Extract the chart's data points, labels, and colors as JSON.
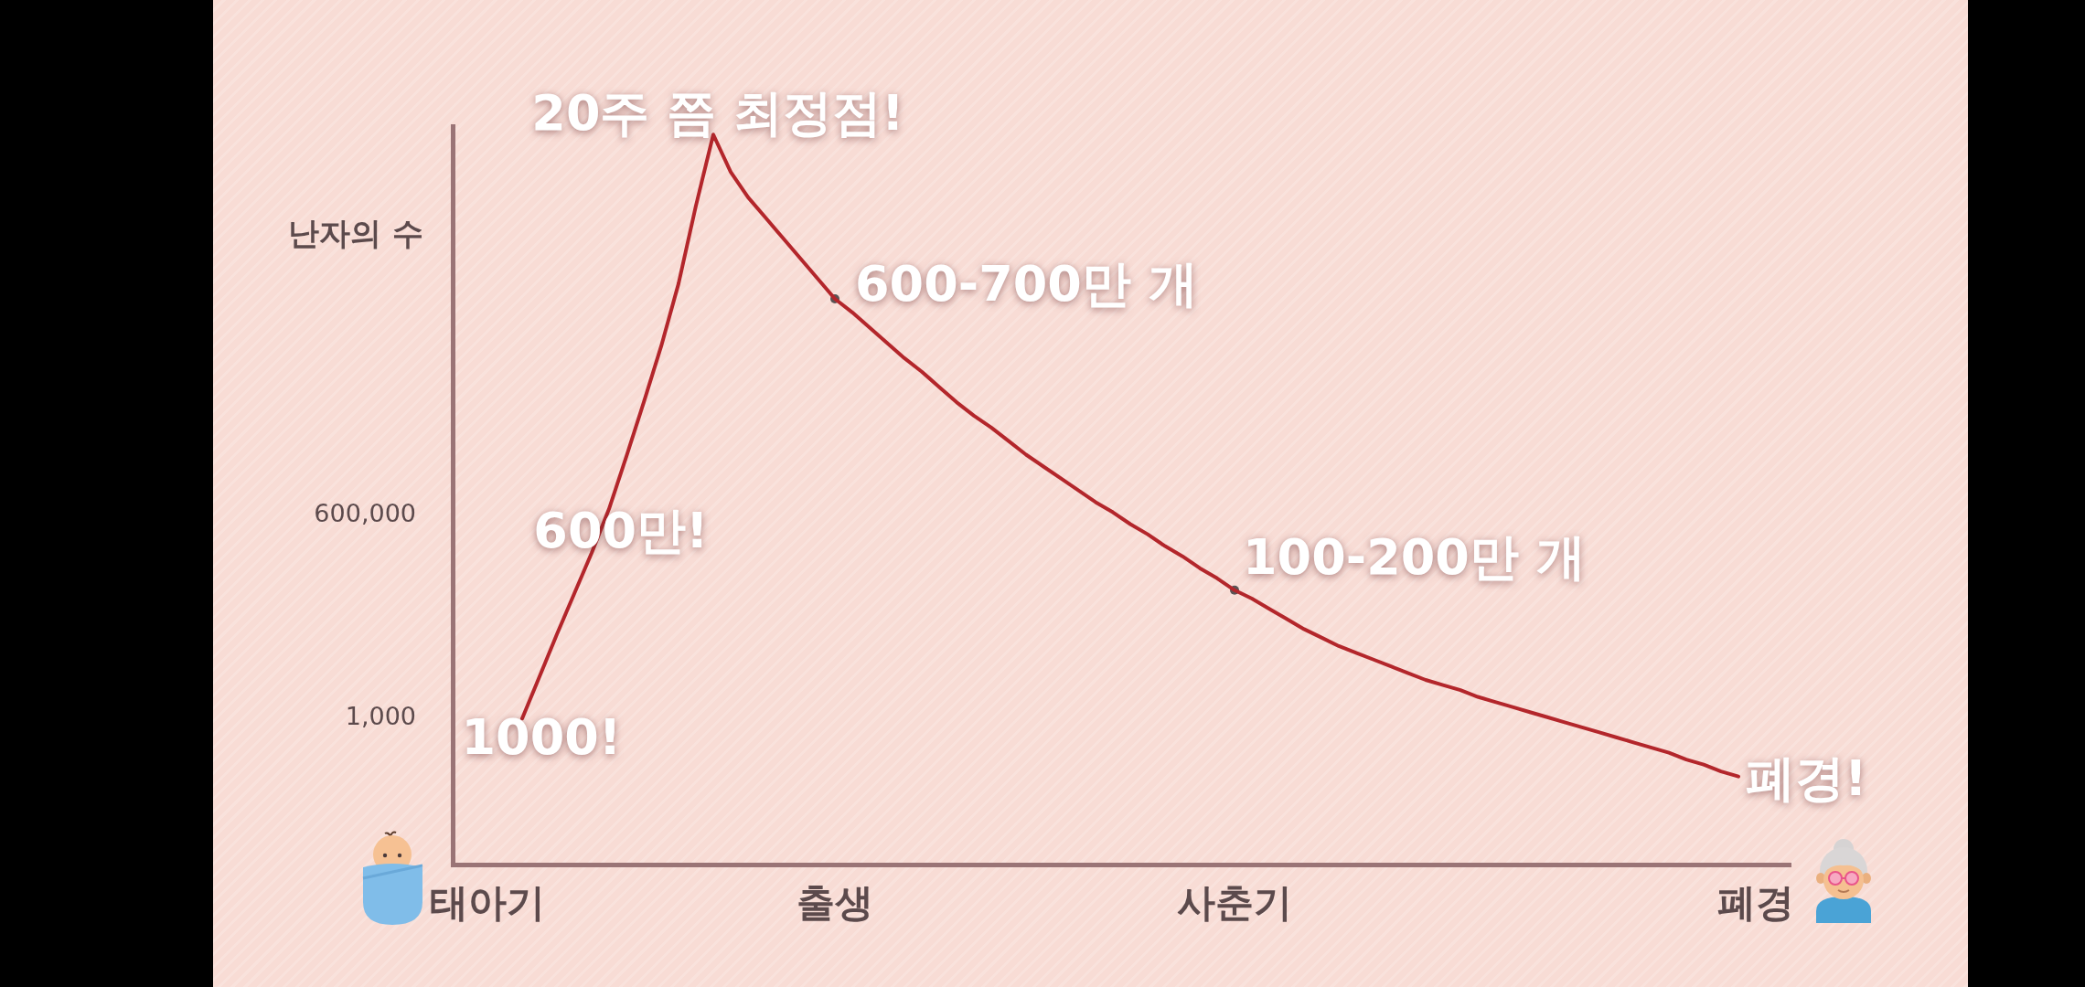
{
  "chart_data": {
    "type": "line",
    "ylabel": "난자의 수",
    "categories": [
      null,
      null,
      "태아기",
      null,
      null,
      null,
      null,
      null,
      null,
      null,
      null,
      null,
      null,
      null,
      null,
      null,
      null,
      null,
      null,
      null,
      null,
      null,
      "출생",
      null,
      null,
      null,
      null,
      null,
      null,
      null,
      null,
      null,
      null,
      null,
      null,
      null,
      null,
      null,
      null,
      null,
      null,
      null,
      null,
      null,
      null,
      "사춘기",
      null,
      null,
      null,
      null,
      null,
      null,
      null,
      null,
      null,
      null,
      null,
      null,
      null,
      null,
      null,
      null,
      null,
      null,
      null,
      null,
      null,
      null,
      null,
      null,
      null,
      null,
      null,
      null,
      null,
      "폐경",
      null,
      null
    ],
    "ylim": [
      -430000,
      1750000
    ],
    "yticks": [
      {
        "value": 1000,
        "label": "1,000"
      },
      {
        "value": 600000,
        "label": "600,000"
      }
    ],
    "series": [
      {
        "color": "#b3262b",
        "marker": "none",
        "values": [
          null,
          null,
          null,
          null,
          1000,
          125000,
          250000,
          370000,
          490000,
          620000,
          775000,
          935000,
          1100000,
          1285000,
          1515000,
          1725000,
          1615000,
          1540000,
          1480000,
          1420000,
          1360000,
          1300000,
          1240000,
          1200000,
          1155000,
          1110000,
          1065000,
          1025000,
          980000,
          935000,
          895000,
          860000,
          820000,
          780000,
          745000,
          710000,
          675000,
          640000,
          610000,
          575000,
          545000,
          510000,
          480000,
          445000,
          415000,
          380000,
          355000,
          325000,
          295000,
          265000,
          240000,
          215000,
          195000,
          175000,
          155000,
          135000,
          115000,
          100000,
          85000,
          65000,
          50000,
          35000,
          20000,
          5000,
          -10000,
          -25000,
          -40000,
          -55000,
          -70000,
          -85000,
          -100000,
          -120000,
          -135000,
          -155000,
          -170000,
          null,
          null,
          null
        ]
      },
      {
        "type": "scatter",
        "color": "#5a5354",
        "marker": "circle",
        "values": [
          null,
          null,
          null,
          null,
          null,
          null,
          null,
          null,
          null,
          null,
          null,
          null,
          null,
          null,
          null,
          null,
          null,
          null,
          null,
          null,
          null,
          null,
          1240000,
          null,
          null,
          null,
          null,
          null,
          null,
          null,
          null,
          null,
          null,
          null,
          null,
          null,
          null,
          null,
          null,
          null,
          null,
          null,
          null,
          null,
          null,
          380000,
          null,
          null,
          null,
          null,
          null,
          null,
          null,
          null,
          null,
          null,
          null,
          null,
          null,
          null,
          null,
          null,
          null,
          null,
          null,
          null,
          null,
          null,
          null,
          null,
          null,
          null,
          null,
          null,
          null,
          null,
          null,
          null
        ]
      }
    ],
    "annotations": [
      {
        "text": "20주 쯤 최정점!",
        "y": 1725000
      },
      {
        "text": "600-700만 개",
        "x": "출생",
        "y": 1240000
      },
      "600만!",
      {
        "text": "100-200만 개",
        "x": "사춘기",
        "y": 380000
      },
      "1000!",
      "폐경!"
    ]
  }
}
